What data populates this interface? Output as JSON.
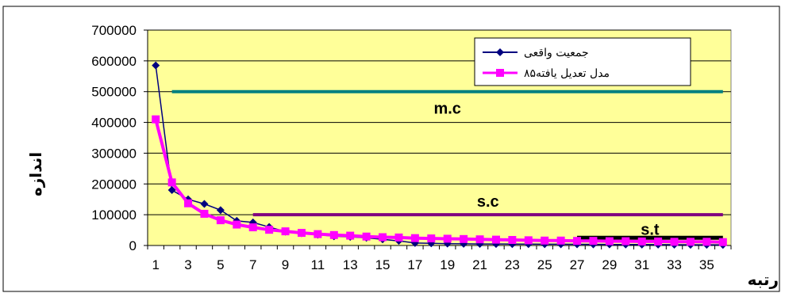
{
  "chart_data": {
    "type": "line",
    "title": "",
    "xlabel": "رتبه",
    "ylabel": "اندازه",
    "x": [
      1,
      2,
      3,
      4,
      5,
      6,
      7,
      8,
      9,
      10,
      11,
      12,
      13,
      14,
      15,
      16,
      17,
      18,
      19,
      20,
      21,
      22,
      23,
      24,
      25,
      26,
      27,
      28,
      29,
      30,
      31,
      32,
      33,
      34,
      35,
      36
    ],
    "x_tick_labels": [
      "1",
      "3",
      "5",
      "7",
      "9",
      "11",
      "13",
      "15",
      "17",
      "19",
      "21",
      "23",
      "25",
      "27",
      "29",
      "31",
      "33",
      "35"
    ],
    "ylim": [
      0,
      700000
    ],
    "y_ticks": [
      0,
      100000,
      200000,
      300000,
      400000,
      500000,
      600000,
      700000
    ],
    "y_tick_labels": [
      "0",
      "100000",
      "200000",
      "300000",
      "400000",
      "500000",
      "600000",
      "700000"
    ],
    "grid": "horizontal",
    "legend_position": "top-right",
    "plot_background": "#ffff99",
    "series": [
      {
        "name": "جمعیت واقعی",
        "color": "#000080",
        "marker": "diamond",
        "values": [
          585000,
          180000,
          150000,
          135000,
          115000,
          80000,
          75000,
          60000,
          45000,
          40000,
          35000,
          30000,
          28000,
          25000,
          20000,
          15000,
          8000,
          7000,
          6000,
          5500,
          5000,
          4800,
          4600,
          4400,
          4200,
          4000,
          3800,
          3600,
          3400,
          3200,
          3000,
          2800,
          2600,
          2400,
          2200,
          2000
        ]
      },
      {
        "name": "مدل تعدیل یافته۸۵",
        "color": "#ff00ff",
        "marker": "square",
        "values": [
          410000,
          205000,
          137000,
          103000,
          82000,
          68000,
          59000,
          51000,
          46000,
          41000,
          37000,
          34000,
          32000,
          29000,
          27000,
          26000,
          24000,
          23000,
          22000,
          21000,
          20000,
          19000,
          18000,
          17000,
          16000,
          16000,
          15000,
          15000,
          14000,
          14000,
          13000,
          13000,
          12000,
          12000,
          12000,
          11000
        ]
      }
    ],
    "reference_lines": [
      {
        "label": "m.c",
        "y": 500000,
        "x_start": 2,
        "x_end": 36,
        "color": "#008080"
      },
      {
        "label": "s.c",
        "y": 100000,
        "x_start": 7,
        "x_end": 36,
        "color": "#800080"
      },
      {
        "label": "s.t",
        "y": 25000,
        "x_start": 27,
        "x_end": 36,
        "color": "#000000"
      }
    ]
  }
}
